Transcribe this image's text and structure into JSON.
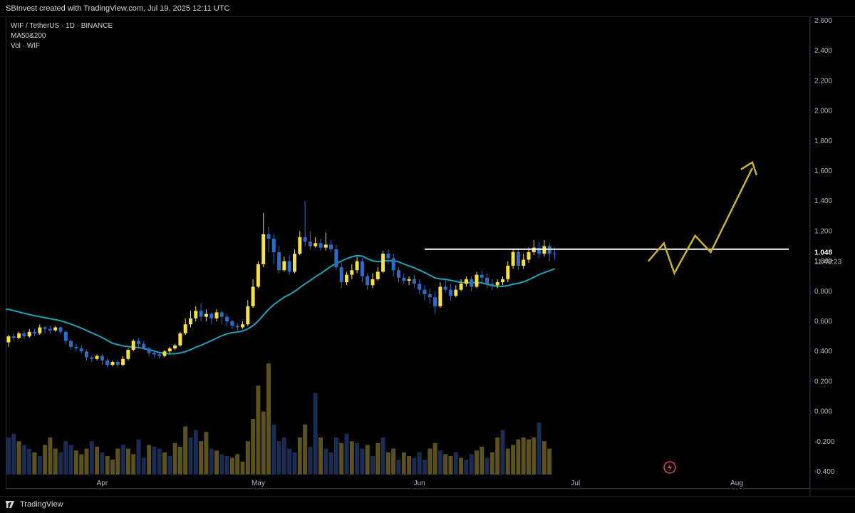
{
  "header": {
    "attribution": "SBInvest created with TradingView.com, Jul 19, 2025 12:11 UTC"
  },
  "legend": {
    "symbol": "WIF / TetherUS · 1D · BINANCE",
    "ma": "MA50&200",
    "vol": "Vol · WIF"
  },
  "price_label": {
    "value": "1.048",
    "countdown": "11:48:23"
  },
  "footer": {
    "brand": "TradingView"
  },
  "colors": {
    "up": "#f5e04a",
    "down": "#2e6bc6",
    "ma": "#1fa2b6",
    "resistance": "#ffffff",
    "arrow": "#c6b234",
    "vol_up": "#5a5020",
    "vol_down": "#1b2b52",
    "lightning": "#e0406a"
  },
  "icons": {
    "lightning": "lightning-icon",
    "logo": "tradingview-logo-icon"
  },
  "chart_data": {
    "type": "candlestick",
    "title": "WIF / TetherUS · 1D · BINANCE",
    "y_ticks": [
      "2.600",
      "2.400",
      "2.200",
      "2.000",
      "1.800",
      "1.600",
      "1.400",
      "1.200",
      "1.000",
      "0.800",
      "0.600",
      "0.400",
      "0.200",
      "0.000",
      "-0.200",
      "-0.400"
    ],
    "ylim": [
      -0.4,
      2.6
    ],
    "x_ticks": [
      "Apr",
      "May",
      "Jun",
      "Jul",
      "Aug"
    ],
    "x_tick_days": [
      18,
      48,
      79,
      109,
      140
    ],
    "start_date": "2025-03-14",
    "last_price": 1.048,
    "resistance": {
      "value": 1.08,
      "from_day": 80,
      "to_day": 150
    },
    "candles": [
      [
        0.46,
        0.5,
        0.43,
        0.51
      ],
      [
        0.5,
        0.49,
        0.47,
        0.52
      ],
      [
        0.49,
        0.52,
        0.48,
        0.53
      ],
      [
        0.52,
        0.5,
        0.48,
        0.54
      ],
      [
        0.5,
        0.53,
        0.49,
        0.55
      ],
      [
        0.53,
        0.52,
        0.5,
        0.55
      ],
      [
        0.52,
        0.56,
        0.51,
        0.58
      ],
      [
        0.56,
        0.55,
        0.52,
        0.57
      ],
      [
        0.55,
        0.54,
        0.52,
        0.57
      ],
      [
        0.54,
        0.56,
        0.53,
        0.57
      ],
      [
        0.56,
        0.53,
        0.51,
        0.57
      ],
      [
        0.53,
        0.47,
        0.45,
        0.54
      ],
      [
        0.47,
        0.43,
        0.41,
        0.48
      ],
      [
        0.43,
        0.42,
        0.4,
        0.45
      ],
      [
        0.42,
        0.4,
        0.39,
        0.44
      ],
      [
        0.4,
        0.36,
        0.34,
        0.41
      ],
      [
        0.36,
        0.35,
        0.33,
        0.37
      ],
      [
        0.35,
        0.37,
        0.34,
        0.38
      ],
      [
        0.37,
        0.34,
        0.31,
        0.38
      ],
      [
        0.34,
        0.31,
        0.29,
        0.35
      ],
      [
        0.31,
        0.33,
        0.3,
        0.34
      ],
      [
        0.33,
        0.31,
        0.29,
        0.34
      ],
      [
        0.31,
        0.35,
        0.3,
        0.37
      ],
      [
        0.35,
        0.41,
        0.34,
        0.42
      ],
      [
        0.41,
        0.47,
        0.4,
        0.48
      ],
      [
        0.47,
        0.45,
        0.43,
        0.49
      ],
      [
        0.45,
        0.42,
        0.41,
        0.47
      ],
      [
        0.42,
        0.39,
        0.37,
        0.43
      ],
      [
        0.39,
        0.38,
        0.36,
        0.4
      ],
      [
        0.38,
        0.37,
        0.35,
        0.39
      ],
      [
        0.37,
        0.4,
        0.36,
        0.41
      ],
      [
        0.4,
        0.42,
        0.39,
        0.43
      ],
      [
        0.42,
        0.44,
        0.41,
        0.45
      ],
      [
        0.44,
        0.52,
        0.43,
        0.53
      ],
      [
        0.52,
        0.58,
        0.51,
        0.62
      ],
      [
        0.58,
        0.62,
        0.56,
        0.67
      ],
      [
        0.62,
        0.67,
        0.6,
        0.7
      ],
      [
        0.67,
        0.63,
        0.6,
        0.72
      ],
      [
        0.63,
        0.65,
        0.6,
        0.68
      ],
      [
        0.65,
        0.62,
        0.58,
        0.66
      ],
      [
        0.62,
        0.66,
        0.6,
        0.68
      ],
      [
        0.66,
        0.63,
        0.58,
        0.67
      ],
      [
        0.63,
        0.6,
        0.57,
        0.65
      ],
      [
        0.6,
        0.57,
        0.55,
        0.61
      ],
      [
        0.57,
        0.56,
        0.54,
        0.59
      ],
      [
        0.56,
        0.58,
        0.55,
        0.6
      ],
      [
        0.58,
        0.7,
        0.57,
        0.74
      ],
      [
        0.7,
        0.83,
        0.69,
        0.88
      ],
      [
        0.83,
        0.98,
        0.82,
        1.0
      ],
      [
        0.98,
        1.18,
        0.96,
        1.32
      ],
      [
        1.18,
        1.15,
        1.06,
        1.23
      ],
      [
        1.15,
        1.06,
        0.98,
        1.18
      ],
      [
        1.06,
        0.94,
        0.92,
        1.1
      ],
      [
        0.94,
        1.0,
        0.93,
        1.03
      ],
      [
        1.0,
        0.93,
        0.91,
        1.04
      ],
      [
        0.93,
        1.05,
        0.92,
        1.08
      ],
      [
        1.05,
        1.16,
        1.04,
        1.2
      ],
      [
        1.16,
        1.13,
        1.1,
        1.4
      ],
      [
        1.13,
        1.1,
        1.08,
        1.2
      ],
      [
        1.1,
        1.12,
        1.09,
        1.16
      ],
      [
        1.12,
        1.09,
        1.07,
        1.15
      ],
      [
        1.09,
        1.11,
        1.07,
        1.19
      ],
      [
        1.11,
        1.08,
        1.06,
        1.14
      ],
      [
        1.08,
        0.96,
        0.94,
        1.11
      ],
      [
        0.96,
        0.86,
        0.82,
        0.99
      ],
      [
        0.86,
        0.91,
        0.84,
        0.93
      ],
      [
        0.91,
        0.94,
        0.88,
        0.98
      ],
      [
        0.94,
        1.0,
        0.92,
        1.03
      ],
      [
        1.0,
        0.9,
        0.86,
        1.02
      ],
      [
        0.9,
        0.84,
        0.81,
        0.92
      ],
      [
        0.84,
        0.88,
        0.82,
        0.92
      ],
      [
        0.88,
        0.93,
        0.87,
        0.96
      ],
      [
        0.93,
        1.05,
        0.92,
        1.07
      ],
      [
        1.05,
        1.02,
        0.98,
        1.08
      ],
      [
        1.02,
        0.94,
        0.9,
        1.05
      ],
      [
        0.94,
        0.89,
        0.86,
        0.96
      ],
      [
        0.89,
        0.87,
        0.85,
        0.92
      ],
      [
        0.87,
        0.88,
        0.84,
        0.9
      ],
      [
        0.88,
        0.85,
        0.82,
        0.91
      ],
      [
        0.85,
        0.81,
        0.78,
        0.88
      ],
      [
        0.81,
        0.78,
        0.74,
        0.84
      ],
      [
        0.78,
        0.76,
        0.72,
        0.82
      ],
      [
        0.76,
        0.7,
        0.65,
        0.8
      ],
      [
        0.7,
        0.83,
        0.69,
        0.86
      ],
      [
        0.83,
        0.81,
        0.79,
        0.88
      ],
      [
        0.81,
        0.77,
        0.74,
        0.85
      ],
      [
        0.77,
        0.81,
        0.76,
        0.84
      ],
      [
        0.81,
        0.85,
        0.8,
        0.88
      ],
      [
        0.85,
        0.88,
        0.83,
        0.9
      ],
      [
        0.88,
        0.83,
        0.8,
        0.9
      ],
      [
        0.83,
        0.91,
        0.82,
        0.93
      ],
      [
        0.91,
        0.89,
        0.86,
        0.94
      ],
      [
        0.89,
        0.85,
        0.82,
        0.92
      ],
      [
        0.85,
        0.84,
        0.81,
        0.88
      ],
      [
        0.84,
        0.86,
        0.82,
        0.88
      ],
      [
        0.86,
        0.88,
        0.84,
        0.9
      ],
      [
        0.88,
        0.97,
        0.86,
        1.0
      ],
      [
        0.97,
        1.06,
        0.95,
        1.08
      ],
      [
        1.06,
        0.97,
        0.94,
        1.08
      ],
      [
        0.97,
        1.01,
        0.95,
        1.05
      ],
      [
        1.01,
        1.06,
        0.99,
        1.09
      ],
      [
        1.06,
        1.09,
        1.04,
        1.14
      ],
      [
        1.09,
        1.05,
        1.02,
        1.13
      ],
      [
        1.05,
        1.1,
        1.03,
        1.14
      ],
      [
        1.1,
        1.05,
        1.0,
        1.12
      ],
      [
        1.05,
        1.048,
        1.01,
        1.09
      ]
    ],
    "volume": [
      [
        0.2,
        "down"
      ],
      [
        0.22,
        "down"
      ],
      [
        0.18,
        "up"
      ],
      [
        0.16,
        "down"
      ],
      [
        0.14,
        "down"
      ],
      [
        0.12,
        "up"
      ],
      [
        0.1,
        "down"
      ],
      [
        0.16,
        "up"
      ],
      [
        0.2,
        "up"
      ],
      [
        0.14,
        "up"
      ],
      [
        0.12,
        "down"
      ],
      [
        0.18,
        "down"
      ],
      [
        0.16,
        "down"
      ],
      [
        0.13,
        "up"
      ],
      [
        0.11,
        "up"
      ],
      [
        0.14,
        "up"
      ],
      [
        0.18,
        "down"
      ],
      [
        0.15,
        "up"
      ],
      [
        0.12,
        "down"
      ],
      [
        0.1,
        "up"
      ],
      [
        0.08,
        "up"
      ],
      [
        0.14,
        "up"
      ],
      [
        0.16,
        "down"
      ],
      [
        0.14,
        "up"
      ],
      [
        0.11,
        "up"
      ],
      [
        0.19,
        "down"
      ],
      [
        0.09,
        "down"
      ],
      [
        0.16,
        "up"
      ],
      [
        0.15,
        "down"
      ],
      [
        0.14,
        "down"
      ],
      [
        0.12,
        "up"
      ],
      [
        0.1,
        "down"
      ],
      [
        0.17,
        "up"
      ],
      [
        0.15,
        "up"
      ],
      [
        0.26,
        "up"
      ],
      [
        0.2,
        "down"
      ],
      [
        0.24,
        "down"
      ],
      [
        0.18,
        "up"
      ],
      [
        0.23,
        "up"
      ],
      [
        0.14,
        "down"
      ],
      [
        0.13,
        "up"
      ],
      [
        0.11,
        "down"
      ],
      [
        0.1,
        "down"
      ],
      [
        0.09,
        "up"
      ],
      [
        0.11,
        "up"
      ],
      [
        0.07,
        "up"
      ],
      [
        0.18,
        "up"
      ],
      [
        0.3,
        "up"
      ],
      [
        0.48,
        "up"
      ],
      [
        0.34,
        "up"
      ],
      [
        0.6,
        "up"
      ],
      [
        0.27,
        "down"
      ],
      [
        0.18,
        "down"
      ],
      [
        0.2,
        "down"
      ],
      [
        0.14,
        "down"
      ],
      [
        0.12,
        "down"
      ],
      [
        0.2,
        "up"
      ],
      [
        0.27,
        "up"
      ],
      [
        0.15,
        "down"
      ],
      [
        0.44,
        "down"
      ],
      [
        0.2,
        "up"
      ],
      [
        0.14,
        "down"
      ],
      [
        0.12,
        "down"
      ],
      [
        0.2,
        "down"
      ],
      [
        0.17,
        "up"
      ],
      [
        0.22,
        "down"
      ],
      [
        0.18,
        "up"
      ],
      [
        0.17,
        "down"
      ],
      [
        0.14,
        "down"
      ],
      [
        0.16,
        "up"
      ],
      [
        0.1,
        "down"
      ],
      [
        0.17,
        "up"
      ],
      [
        0.2,
        "down"
      ],
      [
        0.12,
        "up"
      ],
      [
        0.14,
        "up"
      ],
      [
        0.08,
        "down"
      ],
      [
        0.12,
        "up"
      ],
      [
        0.1,
        "up"
      ],
      [
        0.09,
        "down"
      ],
      [
        0.12,
        "down"
      ],
      [
        0.08,
        "down"
      ],
      [
        0.14,
        "up"
      ],
      [
        0.17,
        "up"
      ],
      [
        0.13,
        "down"
      ],
      [
        0.11,
        "up"
      ],
      [
        0.1,
        "up"
      ],
      [
        0.12,
        "down"
      ],
      [
        0.09,
        "up"
      ],
      [
        0.08,
        "down"
      ],
      [
        0.11,
        "down"
      ],
      [
        0.13,
        "up"
      ],
      [
        0.15,
        "up"
      ],
      [
        0.09,
        "down"
      ],
      [
        0.12,
        "up"
      ],
      [
        0.2,
        "up"
      ],
      [
        0.24,
        "down"
      ],
      [
        0.14,
        "up"
      ],
      [
        0.16,
        "up"
      ],
      [
        0.19,
        "up"
      ],
      [
        0.2,
        "up"
      ],
      [
        0.19,
        "up"
      ],
      [
        0.2,
        "up"
      ],
      [
        0.28,
        "down"
      ],
      [
        0.18,
        "up"
      ],
      [
        0.14,
        "up"
      ]
    ]
  }
}
